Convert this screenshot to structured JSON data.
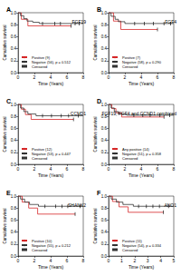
{
  "chart_data": [
    {
      "type": "line",
      "label": "A",
      "title": "FGF19",
      "xlabel": "Time (Years)",
      "ylabel": "Cumulative survival",
      "xlim": [
        0,
        8
      ],
      "xticks": [
        0,
        2,
        4,
        6,
        8
      ],
      "ylim": [
        0,
        1
      ],
      "yticks": [
        {
          "value": 0,
          "label": "0.0"
        },
        0.2,
        0.4,
        0.6,
        0.8,
        {
          "value": 1,
          "label": "1.0"
        }
      ],
      "series": [
        {
          "name": "Positive (9)",
          "type": "step",
          "color": "#d62728",
          "x": [
            0,
            0.4,
            1.2,
            6.5
          ],
          "values": [
            1,
            0.89,
            0.78,
            0.78
          ]
        },
        {
          "name": "Negative (56), p = 0.512",
          "type": "step",
          "color": "#333333",
          "x": [
            0,
            0.3,
            0.7,
            1.1,
            1.8,
            2.6,
            8
          ],
          "values": [
            1,
            0.95,
            0.9,
            0.86,
            0.84,
            0.82,
            0.82
          ]
        },
        {
          "name": "Censored",
          "type": "scatter",
          "marker": "tick",
          "color": "#000000",
          "x": [
            3,
            4.5,
            5.2,
            6.5,
            7,
            7.5
          ],
          "values": [
            0.82,
            0.82,
            0.82,
            0.78,
            0.82,
            0.82
          ]
        }
      ]
    },
    {
      "type": "line",
      "label": "B",
      "title": "FGF4",
      "xlabel": "Time (Years)",
      "ylabel": "Cumulative survival",
      "xlim": [
        0,
        8
      ],
      "xticks": [
        0,
        2,
        4,
        6,
        8
      ],
      "ylim": [
        0,
        1
      ],
      "yticks": [
        {
          "value": 0,
          "label": "0.0"
        },
        0.2,
        0.4,
        0.6,
        0.8,
        {
          "value": 1,
          "label": "1.0"
        }
      ],
      "series": [
        {
          "name": "Positive (7)",
          "type": "step",
          "color": "#d62728",
          "x": [
            0,
            0.6,
            1.5,
            6
          ],
          "values": [
            1,
            0.86,
            0.72,
            0.72
          ]
        },
        {
          "name": "Negative (58), p = 0.290",
          "type": "step",
          "color": "#333333",
          "x": [
            0,
            0.3,
            0.8,
            1.2,
            2,
            8
          ],
          "values": [
            1,
            0.94,
            0.89,
            0.85,
            0.82,
            0.82
          ]
        },
        {
          "name": "Censored",
          "type": "scatter",
          "marker": "tick",
          "color": "#000000",
          "x": [
            3.2,
            4.4,
            5.5,
            6,
            6.8,
            7.6
          ],
          "values": [
            0.82,
            0.82,
            0.82,
            0.72,
            0.82,
            0.82
          ]
        }
      ]
    },
    {
      "type": "line",
      "label": "C",
      "title": "CCND1",
      "xlabel": "Time (Years)",
      "ylabel": "Cumulative survival",
      "xlim": [
        0,
        8
      ],
      "xticks": [
        0,
        2,
        4,
        6,
        8
      ],
      "ylim": [
        0,
        1
      ],
      "yticks": [
        {
          "value": 0,
          "label": "0.0"
        },
        0.2,
        0.4,
        0.6,
        0.8,
        {
          "value": 1,
          "label": "1.0"
        }
      ],
      "series": [
        {
          "name": "Positive (12)",
          "type": "step",
          "color": "#d62728",
          "x": [
            0,
            0.4,
            0.9,
            1.6,
            6.8
          ],
          "values": [
            1,
            0.92,
            0.83,
            0.75,
            0.75
          ]
        },
        {
          "name": "Negative (53), p = 0.447",
          "type": "step",
          "color": "#333333",
          "x": [
            0,
            0.3,
            0.7,
            1.2,
            2.2,
            8
          ],
          "values": [
            1,
            0.94,
            0.88,
            0.84,
            0.81,
            0.81
          ]
        },
        {
          "name": "Censored",
          "type": "scatter",
          "marker": "tick",
          "color": "#000000",
          "x": [
            3,
            4.1,
            5.3,
            6.2,
            6.8,
            7.4
          ],
          "values": [
            0.81,
            0.81,
            0.81,
            0.81,
            0.75,
            0.81
          ]
        }
      ]
    },
    {
      "type": "line",
      "label": "D",
      "title": "FGF19, FGF4 and CCND1 combined",
      "xlabel": "Time (Years)",
      "ylabel": "Cumulative survival",
      "xlim": [
        0,
        8
      ],
      "xticks": [
        0,
        2,
        4,
        6,
        8
      ],
      "ylim": [
        0,
        1
      ],
      "yticks": [
        {
          "value": 0,
          "label": "0.0"
        },
        0.2,
        0.4,
        0.6,
        0.8,
        {
          "value": 1,
          "label": "1.0"
        }
      ],
      "series": [
        {
          "name": "Any positive (14)",
          "type": "step",
          "color": "#d62728",
          "x": [
            0,
            0.4,
            0.9,
            1.6,
            6.8
          ],
          "values": [
            1,
            0.93,
            0.86,
            0.79,
            0.79
          ]
        },
        {
          "name": "Negative (51), p = 0.358",
          "type": "step",
          "color": "#333333",
          "x": [
            0,
            0.3,
            0.7,
            1.2,
            2.2,
            8
          ],
          "values": [
            1,
            0.94,
            0.88,
            0.84,
            0.82,
            0.82
          ]
        },
        {
          "name": "Censored",
          "type": "scatter",
          "marker": "tick",
          "color": "#000000",
          "x": [
            3.1,
            4.2,
            5.1,
            6.3,
            6.8,
            7.5
          ],
          "values": [
            0.82,
            0.82,
            0.82,
            0.82,
            0.79,
            0.82
          ]
        }
      ]
    },
    {
      "type": "line",
      "label": "E",
      "title": "SHANK2",
      "xlabel": "Time (Years)",
      "ylabel": "Cumulative survival",
      "xlim": [
        0,
        8
      ],
      "xticks": [
        0,
        2,
        4,
        6,
        8
      ],
      "ylim": [
        0,
        1
      ],
      "yticks": [
        {
          "value": 0,
          "label": "0.0"
        },
        0.2,
        0.4,
        0.6,
        0.8,
        {
          "value": 1,
          "label": "1.0"
        }
      ],
      "series": [
        {
          "name": "Positive (10)",
          "type": "step",
          "color": "#d62728",
          "x": [
            0,
            0.5,
            1.3,
            2.4,
            7
          ],
          "values": [
            1,
            0.9,
            0.8,
            0.7,
            0.7
          ]
        },
        {
          "name": "Negative (55), p = 0.212",
          "type": "step",
          "color": "#333333",
          "x": [
            0,
            0.3,
            0.8,
            1.4,
            2.5,
            8
          ],
          "values": [
            1,
            0.95,
            0.9,
            0.86,
            0.83,
            0.83
          ]
        },
        {
          "name": "Censored",
          "type": "scatter",
          "marker": "tick",
          "color": "#000000",
          "x": [
            3.3,
            4.6,
            5.4,
            6.1,
            7,
            7.6
          ],
          "values": [
            0.83,
            0.83,
            0.83,
            0.83,
            0.7,
            0.83
          ]
        }
      ]
    },
    {
      "type": "line",
      "label": "F",
      "title": "ANO1",
      "xlabel": "Time (Years)",
      "ylabel": "Cumulative survival",
      "xlim": [
        0,
        5
      ],
      "xticks": [
        0,
        1,
        2,
        3,
        4,
        5
      ],
      "ylim": [
        0,
        1
      ],
      "yticks": [
        {
          "value": 0,
          "label": "0.0"
        },
        0.2,
        0.4,
        0.6,
        0.8,
        {
          "value": 1,
          "label": "1.0"
        }
      ],
      "series": [
        {
          "name": "Positive (11)",
          "type": "step",
          "color": "#d62728",
          "x": [
            0,
            0.3,
            0.8,
            1.5,
            4.2
          ],
          "values": [
            1,
            0.91,
            0.82,
            0.73,
            0.73
          ]
        },
        {
          "name": "Negative (54), p = 0.334",
          "type": "step",
          "color": "#333333",
          "x": [
            0,
            0.2,
            0.6,
            1.1,
            1.9,
            5
          ],
          "values": [
            1,
            0.95,
            0.9,
            0.86,
            0.83,
            0.83
          ]
        },
        {
          "name": "Censored",
          "type": "scatter",
          "marker": "tick",
          "color": "#000000",
          "x": [
            2.3,
            2.9,
            3.4,
            3.9,
            4.2,
            4.6
          ],
          "values": [
            0.83,
            0.83,
            0.83,
            0.83,
            0.73,
            0.83
          ]
        }
      ]
    }
  ]
}
